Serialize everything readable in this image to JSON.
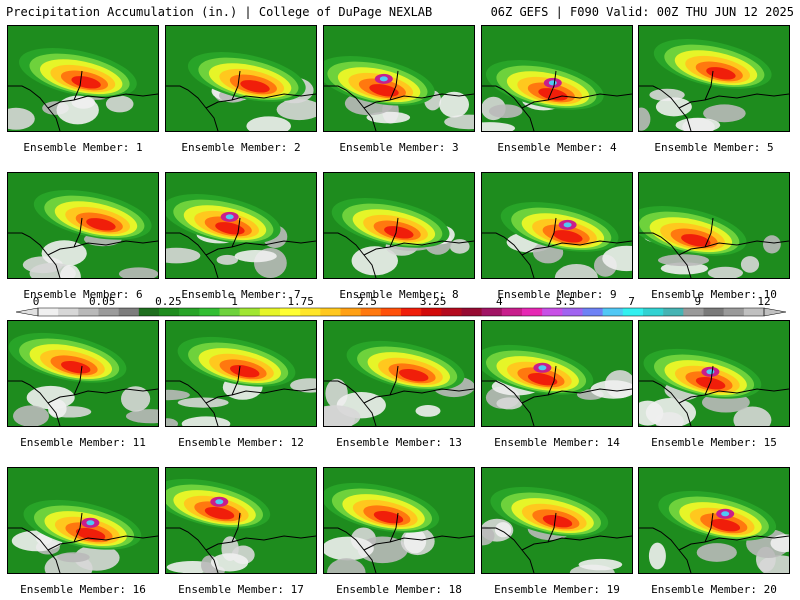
{
  "header": {
    "left": "Precipitation Accumulation (in.) | College of DuPage NEXLAB",
    "right": "06Z GEFS | F090 Valid: 00Z THU JUN 12 2025"
  },
  "caption_prefix": "Ensemble Member: ",
  "members": [
    1,
    2,
    3,
    4,
    5,
    6,
    7,
    8,
    9,
    10,
    11,
    12,
    13,
    14,
    15,
    16,
    17,
    18,
    19,
    20
  ],
  "colorbar": {
    "labels": [
      "0",
      "0.05",
      "0.25",
      "1",
      "1.75",
      "2.5",
      "3.25",
      "4",
      "5.5",
      "7",
      "9",
      "12"
    ],
    "colors": [
      "#f0f0f0",
      "#d7d7d7",
      "#b9b9b9",
      "#9b9b9b",
      "#7d7d7d",
      "#1e6e1e",
      "#1e8c1e",
      "#28a428",
      "#32be32",
      "#6ed23c",
      "#a0e632",
      "#e6f528",
      "#ffff32",
      "#ffe628",
      "#ffc81e",
      "#ffa014",
      "#ff780f",
      "#ff500a",
      "#f01e0a",
      "#d20a0a",
      "#b40a1e",
      "#960a32",
      "#a01464",
      "#c81e8c",
      "#e628b4",
      "#c850e6",
      "#a064f0",
      "#6e82f5",
      "#50c8f5",
      "#32f0f0",
      "#32d2d2",
      "#46b4b4",
      "#9a9a9a",
      "#7a7a7a",
      "#9a9a9a",
      "#c0c0c0"
    ]
  },
  "map": {
    "background": "#1e8c1e",
    "border_color": "#000000",
    "label_color": "#000000"
  }
}
